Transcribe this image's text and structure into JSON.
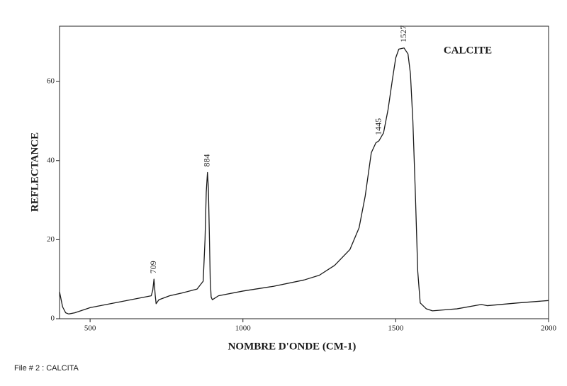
{
  "chart_data": {
    "type": "line",
    "x_label": "NOMBRE D'ONDE (CM-1)",
    "y_label": "REFLECTANCE",
    "x": [
      400,
      410,
      420,
      430,
      450,
      500,
      600,
      700,
      705,
      709,
      713,
      716,
      725,
      760,
      800,
      850,
      870,
      876,
      880,
      884,
      887,
      890,
      893,
      896,
      900,
      920,
      1000,
      1100,
      1200,
      1250,
      1300,
      1350,
      1380,
      1400,
      1420,
      1435,
      1445,
      1460,
      1475,
      1490,
      1500,
      1510,
      1527,
      1540,
      1548,
      1556,
      1564,
      1572,
      1580,
      1600,
      1620,
      1700,
      1780,
      1800,
      1900,
      2000
    ],
    "series": [
      {
        "name": "CALCITE",
        "color": "#1a1a1a",
        "values": [
          6.8,
          3,
          1.5,
          1.2,
          1.5,
          2.8,
          4.3,
          5.8,
          7.2,
          10,
          6,
          3.8,
          4.8,
          5.8,
          6.5,
          7.5,
          9.5,
          20,
          32,
          37,
          33,
          22,
          10,
          5.5,
          4.8,
          5.8,
          7,
          8.2,
          9.8,
          11,
          13.5,
          17.5,
          23,
          31,
          42,
          44.5,
          45,
          47,
          53,
          61,
          66,
          68.2,
          68.5,
          67,
          62,
          50,
          32,
          12,
          4,
          2.5,
          2,
          2.5,
          3.6,
          3.3,
          4,
          4.6
        ]
      }
    ],
    "annotations": [
      {
        "value": 709,
        "label": "709"
      },
      {
        "value": 884,
        "label": "884"
      },
      {
        "value": 1445,
        "label": "1445"
      },
      {
        "value": 1527,
        "label": "1527"
      }
    ],
    "xlim": [
      400,
      2000
    ],
    "ylim": [
      0,
      74
    ],
    "xticks": [
      500,
      1000,
      1500,
      2000
    ],
    "yticks": [
      0,
      20,
      40,
      60
    ],
    "grid": false
  },
  "footer": "File # 2 : CALCITA"
}
